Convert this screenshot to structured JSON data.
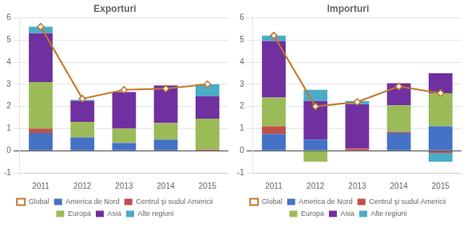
{
  "chart_data": [
    {
      "type": "bar",
      "title": "Exporturi",
      "categories": [
        "2011",
        "2012",
        "2013",
        "2014",
        "2015"
      ],
      "series": [
        {
          "name": "America de Nord",
          "color": "#4472C4",
          "values": [
            0.8,
            0.6,
            0.35,
            0.5,
            0.0
          ]
        },
        {
          "name": "Centrul şi sudul Americii",
          "color": "#C0504D",
          "values": [
            0.2,
            0.0,
            0.0,
            0.0,
            0.05
          ]
        },
        {
          "name": "Europa",
          "color": "#9BBB59",
          "values": [
            2.1,
            0.7,
            0.65,
            0.75,
            1.4
          ]
        },
        {
          "name": "Asia",
          "color": "#7030A0",
          "values": [
            2.2,
            0.95,
            1.65,
            1.7,
            1.0
          ]
        },
        {
          "name": "Alte regiuni",
          "color": "#4BACC6",
          "values": [
            0.3,
            0.05,
            0.0,
            0.0,
            0.55
          ]
        },
        {
          "name": "Global",
          "type": "line",
          "marker": "diamond",
          "color": "#C07828",
          "values": [
            5.6,
            2.35,
            2.75,
            2.8,
            3.0
          ]
        }
      ],
      "stacked": true,
      "ylim": [
        -1,
        6
      ],
      "yticks": [
        -1,
        0,
        1,
        2,
        3,
        4,
        5,
        6
      ],
      "grid": true,
      "legend": "bottom"
    },
    {
      "type": "bar",
      "title": "Importuri",
      "categories": [
        "2011",
        "2012",
        "2013",
        "2014",
        "2015"
      ],
      "series": [
        {
          "name": "America de Nord",
          "color": "#4472C4",
          "values": [
            0.75,
            0.5,
            0.0,
            0.8,
            1.1
          ]
        },
        {
          "name": "Centrul şi sudul Americii",
          "color": "#C0504D",
          "values": [
            0.35,
            0.0,
            0.1,
            0.05,
            -0.1
          ]
        },
        {
          "name": "Europa",
          "color": "#9BBB59",
          "values": [
            1.3,
            -0.5,
            0.0,
            1.2,
            1.5
          ]
        },
        {
          "name": "Asia",
          "color": "#7030A0",
          "values": [
            2.55,
            1.75,
            2.0,
            1.0,
            0.9
          ]
        },
        {
          "name": "Alte regiuni",
          "color": "#4BACC6",
          "values": [
            0.25,
            0.5,
            0.15,
            0.0,
            -0.4
          ]
        },
        {
          "name": "Global",
          "type": "line",
          "marker": "diamond",
          "color": "#C07828",
          "values": [
            5.2,
            2.0,
            2.2,
            2.9,
            2.6
          ]
        }
      ],
      "stacked": true,
      "ylim": [
        -1,
        6
      ],
      "yticks": [
        -1,
        0,
        1,
        2,
        3,
        4,
        5,
        6
      ],
      "grid": true,
      "legend": "bottom"
    }
  ]
}
